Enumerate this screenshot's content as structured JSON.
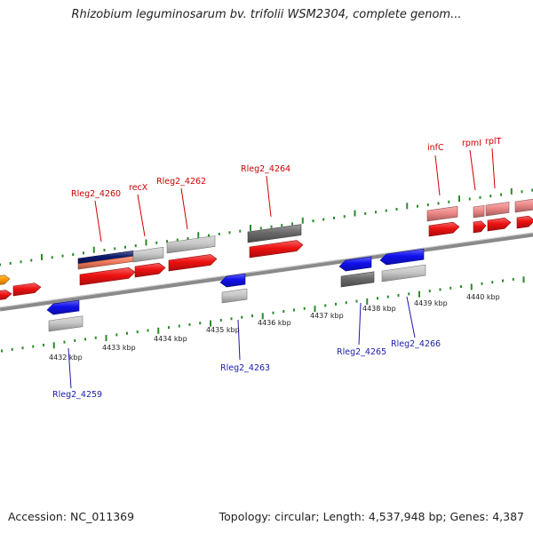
{
  "title": "Rhizobium leguminosarum bv. trifolii WSM2304, complete genom...",
  "footer": {
    "accession": "Accession: NC_011369",
    "topology": "Topology: circular; Length: 4,537,948 bp; Genes: 4,387"
  },
  "colors": {
    "forward_gene": "#ee1111",
    "forward_gene_light": "#ee8888",
    "reverse_gene": "#1010ee",
    "orange_gene": "#ff9900",
    "navy_gene": "#0a1a6a",
    "salmon_gene": "#f07a5a",
    "grey_feature": "#c8c8c8",
    "dark_grey_feature": "#6a6a6a",
    "backbone": "#8a8a8a",
    "tick": "#2a8a2a",
    "forward_label": "#cc0000",
    "reverse_label": "#1a1aaa"
  },
  "scale_ticks": [
    "4432 kbp",
    "4433 kbp",
    "4434 kbp",
    "4435 kbp",
    "4436 kbp",
    "4437 kbp",
    "4438 kbp",
    "4439 kbp",
    "4440 kbp"
  ],
  "forward_labels": [
    "Rleg2_4260",
    "recX",
    "Rleg2_4262",
    "Rleg2_4264",
    "infC",
    "rpmI",
    "rplT"
  ],
  "reverse_labels": [
    "Rleg2_4259",
    "Rleg2_4263",
    "Rleg2_4265",
    "Rleg2_4266"
  ],
  "features": [
    {
      "name": "orange-gene",
      "color": "orange_gene"
    },
    {
      "name": "gene-left-edge",
      "color": "forward_gene"
    },
    {
      "name": "gene-left-edge-2",
      "color": "forward_gene"
    },
    {
      "name": "gene-rleg2-4260",
      "color": "forward_gene"
    },
    {
      "name": "gene-rleg2-4260-navy",
      "color": "navy_gene"
    },
    {
      "name": "gene-rleg2-4260-salmon",
      "color": "salmon_gene"
    },
    {
      "name": "gene-recx",
      "color": "forward_gene"
    },
    {
      "name": "gene-rleg2-4262",
      "color": "forward_gene"
    },
    {
      "name": "gene-rleg2-4264",
      "color": "forward_gene"
    },
    {
      "name": "gene-infc",
      "color": "forward_gene"
    },
    {
      "name": "gene-infc-light",
      "color": "forward_gene_light"
    },
    {
      "name": "gene-rpmi",
      "color": "forward_gene"
    },
    {
      "name": "gene-rpmi-light",
      "color": "forward_gene_light"
    },
    {
      "name": "gene-rplt",
      "color": "forward_gene"
    },
    {
      "name": "gene-rplt-light",
      "color": "forward_gene_light"
    },
    {
      "name": "gene-rplt-2",
      "color": "forward_gene"
    },
    {
      "name": "gene-rplt-2-light",
      "color": "forward_gene_light"
    },
    {
      "name": "gene-rleg2-4259",
      "color": "reverse_gene"
    },
    {
      "name": "gene-rleg2-4263",
      "color": "reverse_gene"
    },
    {
      "name": "gene-rleg2-4265",
      "color": "reverse_gene"
    },
    {
      "name": "gene-rleg2-4266",
      "color": "reverse_gene"
    },
    {
      "name": "feature-grey-1",
      "color": "grey_feature"
    },
    {
      "name": "feature-grey-2",
      "color": "grey_feature"
    },
    {
      "name": "feature-grey-3",
      "color": "grey_feature"
    },
    {
      "name": "feature-grey-4",
      "color": "grey_feature"
    },
    {
      "name": "feature-grey-5",
      "color": "grey_feature"
    },
    {
      "name": "feature-grey-6",
      "color": "grey_feature"
    },
    {
      "name": "feature-dark-grey-1",
      "color": "dark_grey_feature"
    },
    {
      "name": "feature-dark-grey-2",
      "color": "dark_grey_feature"
    }
  ]
}
